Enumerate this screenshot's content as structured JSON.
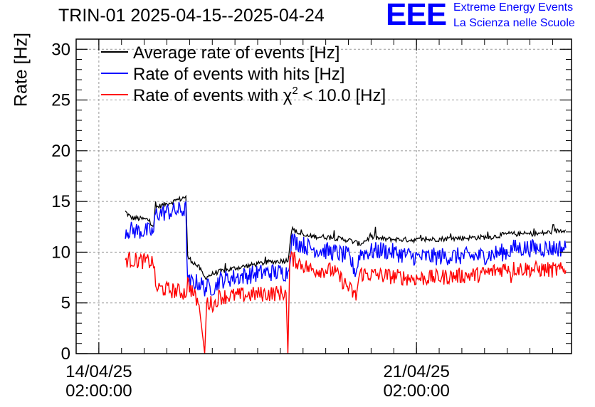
{
  "title": "TRIN-01 2025-04-15--2025-04-24",
  "logo": {
    "letters": "EEE",
    "line1": "Extreme Energy Events",
    "line2": "La Scienza nelle Scuole",
    "color": "#0000ff"
  },
  "chart_data": {
    "type": "line",
    "title": "TRIN-01 2025-04-15--2025-04-24",
    "xlabel": "",
    "ylabel": "Rate [Hz]",
    "ylim": [
      0,
      31
    ],
    "xlim": [
      "2025-04-13 14:00",
      "2025-04-24 12:00"
    ],
    "grid": true,
    "legend_position": "top-left",
    "yticks": [
      0,
      5,
      10,
      15,
      20,
      25,
      30
    ],
    "xticks": [
      {
        "x": "2025-04-14 02:00",
        "label_line1": "14/04/25",
        "label_line2": "02:00:00"
      },
      {
        "x": "2025-04-21 02:00",
        "label_line1": "21/04/25",
        "label_line2": "02:00:00"
      }
    ],
    "series": [
      {
        "name": "Average rate of events [Hz]",
        "legend_pre": "Average rate of events [Hz]",
        "legend_sup": "",
        "legend_post": "",
        "color": "#000000",
        "noise": 0.25,
        "points": [
          [
            "2025-04-14 16:00",
            14.0
          ],
          [
            "2025-04-14 19:00",
            13.4
          ],
          [
            "2025-04-15 04:00",
            13.2
          ],
          [
            "2025-04-15 07:00",
            12.6
          ],
          [
            "2025-04-15 08:00",
            14.4
          ],
          [
            "2025-04-15 22:00",
            15.3
          ],
          [
            "2025-04-16 00:00",
            15.5
          ],
          [
            "2025-04-16 01:00",
            9.5
          ],
          [
            "2025-04-16 07:00",
            8.5
          ],
          [
            "2025-04-16 10:00",
            7.5
          ],
          [
            "2025-04-16 16:00",
            8.0
          ],
          [
            "2025-04-17 04:00",
            8.5
          ],
          [
            "2025-04-17 19:00",
            9.0
          ],
          [
            "2025-04-18 06:00",
            9.2
          ],
          [
            "2025-04-18 08:00",
            12.3
          ],
          [
            "2025-04-18 14:00",
            11.6
          ],
          [
            "2025-04-19 02:00",
            11.5
          ],
          [
            "2025-04-19 14:00",
            11.2
          ],
          [
            "2025-04-19 20:00",
            10.8
          ],
          [
            "2025-04-20 02:00",
            11.5
          ],
          [
            "2025-04-20 08:00",
            11.3
          ],
          [
            "2025-04-21 02:00",
            11.2
          ],
          [
            "2025-04-22 02:00",
            11.4
          ],
          [
            "2025-04-22 18:00",
            11.5
          ],
          [
            "2025-04-23 02:00",
            11.8
          ],
          [
            "2025-04-23 18:00",
            11.8
          ],
          [
            "2025-04-24 09:00",
            12.2
          ]
        ]
      },
      {
        "name": "Rate of events with hits [Hz]",
        "legend_pre": "Rate of events with hits [Hz]",
        "legend_sup": "",
        "legend_post": "",
        "color": "#0000ff",
        "noise": 0.9,
        "points": [
          [
            "2025-04-14 16:00",
            12.2
          ],
          [
            "2025-04-15 07:00",
            12.0
          ],
          [
            "2025-04-15 08:00",
            13.8
          ],
          [
            "2025-04-16 00:00",
            14.2
          ],
          [
            "2025-04-16 01:00",
            7.0
          ],
          [
            "2025-04-16 07:00",
            7.0
          ],
          [
            "2025-04-16 10:00",
            6.5
          ],
          [
            "2025-04-16 16:00",
            6.6
          ],
          [
            "2025-04-16 17:00",
            7.2
          ],
          [
            "2025-04-17 04:00",
            7.6
          ],
          [
            "2025-04-17 18:00",
            8.0
          ],
          [
            "2025-04-18 06:00",
            8.0
          ],
          [
            "2025-04-18 08:00",
            11.2
          ],
          [
            "2025-04-18 18:00",
            10.4
          ],
          [
            "2025-04-19 06:00",
            10.0
          ],
          [
            "2025-04-19 14:00",
            9.6
          ],
          [
            "2025-04-19 18:00",
            8.0
          ],
          [
            "2025-04-19 20:00",
            9.9
          ],
          [
            "2025-04-20 08:00",
            10.2
          ],
          [
            "2025-04-21 02:00",
            9.5
          ],
          [
            "2025-04-21 18:00",
            9.6
          ],
          [
            "2025-04-22 12:00",
            9.6
          ],
          [
            "2025-04-23 00:00",
            10.0
          ],
          [
            "2025-04-23 03:00",
            10.1
          ],
          [
            "2025-04-23 05:00",
            10.4
          ],
          [
            "2025-04-24 09:00",
            10.4
          ]
        ]
      },
      {
        "name": "Rate of events with χ2 < 10.0 [Hz]",
        "legend_pre": "Rate of events with χ",
        "legend_sup": "2",
        "legend_post": " < 10.0 [Hz]",
        "color": "#ff0000",
        "noise": 0.8,
        "points": [
          [
            "2025-04-14 16:00",
            9.3
          ],
          [
            "2025-04-15 07:00",
            9.0
          ],
          [
            "2025-04-15 08:00",
            6.5
          ],
          [
            "2025-04-16 00:00",
            6.0
          ],
          [
            "2025-04-16 01:00",
            7.0
          ],
          [
            "2025-04-16 07:00",
            4.8
          ],
          [
            "2025-04-16 10:00",
            0.0
          ],
          [
            "2025-04-16 11:00",
            5.0
          ],
          [
            "2025-04-16 16:00",
            4.9
          ],
          [
            "2025-04-16 17:00",
            5.6
          ],
          [
            "2025-04-17 18:00",
            5.9
          ],
          [
            "2025-04-18 05:00",
            6.0
          ],
          [
            "2025-04-18 06:00",
            0.0
          ],
          [
            "2025-04-18 07:00",
            9.5
          ],
          [
            "2025-04-18 18:00",
            8.3
          ],
          [
            "2025-04-19 06:00",
            8.2
          ],
          [
            "2025-04-19 14:00",
            6.5
          ],
          [
            "2025-04-19 18:00",
            5.6
          ],
          [
            "2025-04-19 20:00",
            7.9
          ],
          [
            "2025-04-21 02:00",
            7.4
          ],
          [
            "2025-04-22 12:00",
            7.8
          ],
          [
            "2025-04-23 00:00",
            8.4
          ],
          [
            "2025-04-23 03:00",
            8.6
          ],
          [
            "2025-04-23 04:00",
            7.4
          ],
          [
            "2025-04-23 05:00",
            8.4
          ],
          [
            "2025-04-24 09:00",
            8.2
          ]
        ]
      }
    ]
  }
}
